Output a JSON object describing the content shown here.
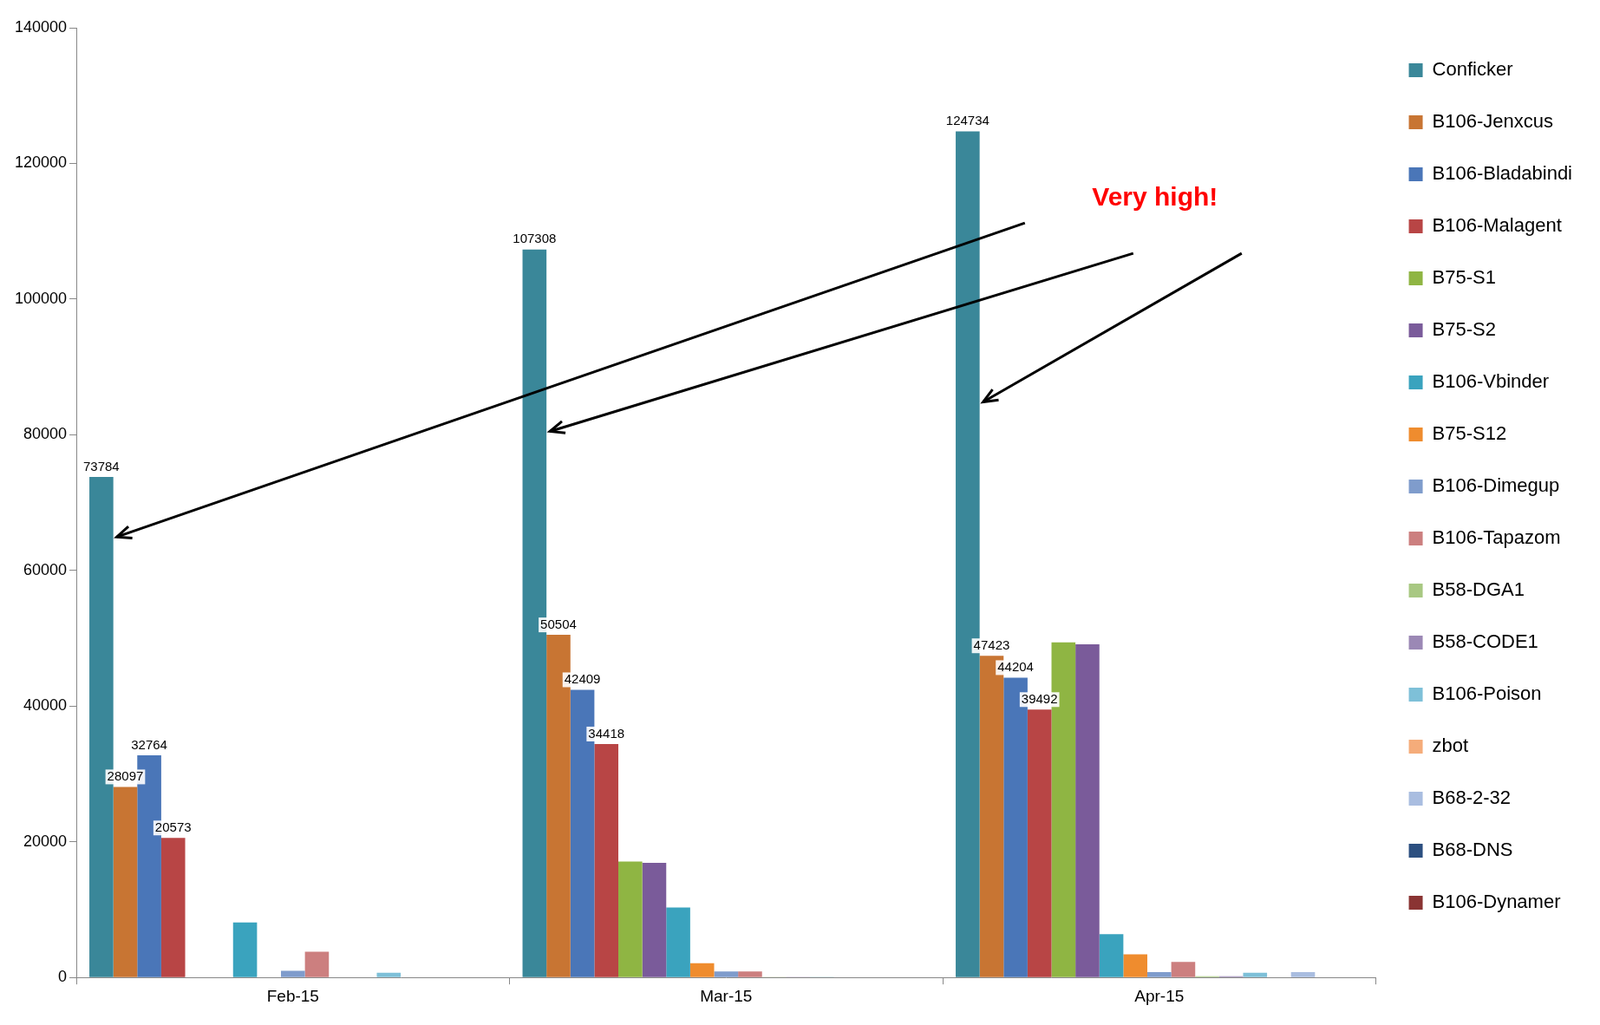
{
  "chart_data": {
    "type": "bar",
    "categories": [
      "Feb-15",
      "Mar-15",
      "Apr-15"
    ],
    "series": [
      {
        "name": "Conficker",
        "color": "#3a8799",
        "values": [
          73784,
          107308,
          124734
        ],
        "data_labels": true
      },
      {
        "name": "B106-Jenxcus",
        "color": "#c87533",
        "values": [
          28097,
          50504,
          47423
        ],
        "data_labels": true
      },
      {
        "name": "B106-Bladabindi",
        "color": "#4a76b8",
        "values": [
          32764,
          42409,
          44204
        ],
        "data_labels": true
      },
      {
        "name": "B106-Malagent",
        "color": "#b84545",
        "values": [
          20573,
          34418,
          39492
        ],
        "data_labels": true
      },
      {
        "name": "B75-S1",
        "color": "#8fb543",
        "values": [
          0,
          17100,
          49400
        ]
      },
      {
        "name": "B75-S2",
        "color": "#7a5b9a",
        "values": [
          0,
          16900,
          49100
        ]
      },
      {
        "name": "B106-Vbinder",
        "color": "#3aa3be",
        "values": [
          8100,
          10300,
          6400
        ]
      },
      {
        "name": "B75-S12",
        "color": "#ef8c2e",
        "values": [
          0,
          2100,
          3400
        ]
      },
      {
        "name": "B106-Dimegup",
        "color": "#7f9ccc",
        "values": [
          1000,
          900,
          800
        ]
      },
      {
        "name": "B106-Tapazom",
        "color": "#cc7f7f",
        "values": [
          3800,
          900,
          2300
        ]
      },
      {
        "name": "B58-DGA1",
        "color": "#a8c882",
        "values": [
          0,
          100,
          200
        ]
      },
      {
        "name": "B58-CODE1",
        "color": "#9b88b5",
        "values": [
          0,
          100,
          200
        ]
      },
      {
        "name": "B106-Poison",
        "color": "#7ec0d8",
        "values": [
          700,
          100,
          700
        ]
      },
      {
        "name": "zbot",
        "color": "#f5ac7a",
        "values": [
          0,
          0,
          0
        ]
      },
      {
        "name": "B68-2-32",
        "color": "#a9bde0",
        "values": [
          0,
          0,
          800
        ]
      },
      {
        "name": "B68-DNS",
        "color": "#2c4f80",
        "values": [
          0,
          0,
          0
        ]
      },
      {
        "name": "B106-Dynamer",
        "color": "#8a3433",
        "values": [
          0,
          0,
          0
        ]
      }
    ],
    "ylim": [
      0,
      140000
    ],
    "yticks": [
      0,
      20000,
      40000,
      60000,
      80000,
      100000,
      120000,
      140000
    ],
    "grid": false,
    "legend": "right",
    "annotations": [
      {
        "text": "Very high!",
        "color": "#ff0000"
      }
    ]
  }
}
